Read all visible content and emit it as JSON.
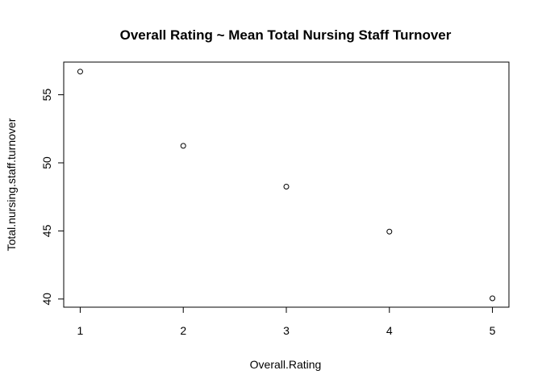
{
  "chart_data": {
    "type": "scatter",
    "title": "Overall Rating ~ Mean Total Nursing Staff Turnover",
    "xlabel": "Overall.Rating",
    "ylabel": "Total.nursing.staff.turnover",
    "x": [
      1,
      2,
      3,
      4,
      5
    ],
    "y": [
      56.7,
      51.25,
      48.25,
      44.95,
      40.05
    ],
    "xlim": [
      0.84,
      5.16
    ],
    "ylim": [
      39.4,
      57.4
    ],
    "x_ticks": [
      1,
      2,
      3,
      4,
      5
    ],
    "y_ticks": [
      40,
      45,
      50,
      55
    ],
    "marker": "open-circle",
    "grid": false,
    "legend": "none"
  }
}
